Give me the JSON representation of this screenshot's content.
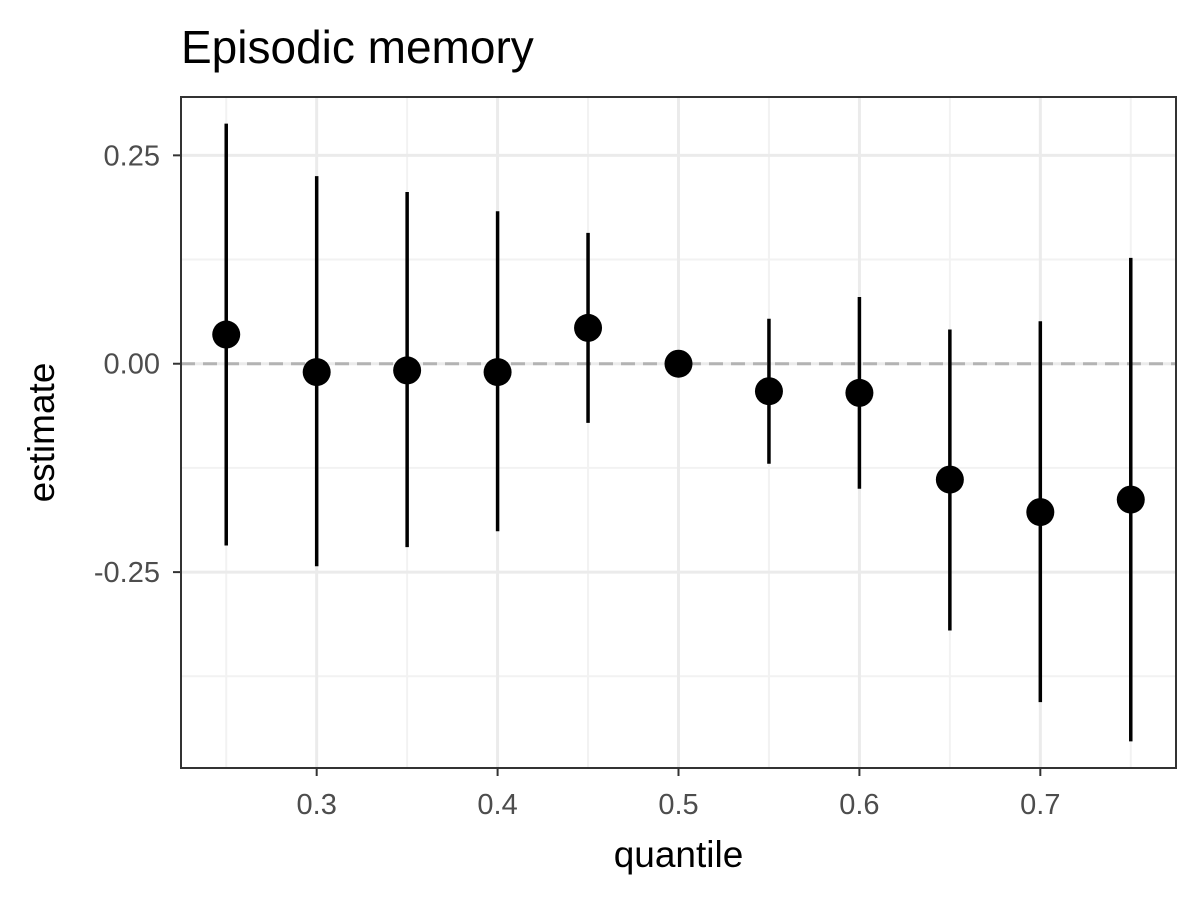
{
  "chart_data": {
    "type": "scatter",
    "title": "Episodic memory",
    "xlabel": "quantile",
    "ylabel": "estimate",
    "xlim": [
      0.225,
      0.775
    ],
    "ylim": [
      -0.485,
      0.32
    ],
    "x_ticks": [
      0.3,
      0.4,
      0.5,
      0.6,
      0.7
    ],
    "x_tick_labels": [
      "0.3",
      "0.4",
      "0.5",
      "0.6",
      "0.7"
    ],
    "x_minor_gridlines": [
      0.25,
      0.35,
      0.45,
      0.55,
      0.65,
      0.75
    ],
    "y_ticks": [
      0.25,
      0.0,
      -0.25
    ],
    "y_tick_labels": [
      "0.25",
      "0.00",
      "-0.25"
    ],
    "y_minor_gridlines": [
      0.125,
      -0.125,
      -0.375
    ],
    "grid": true,
    "reference_line": {
      "y": 0,
      "style": "dashed",
      "color": "#b3b3b3"
    },
    "point_color": "#000000",
    "panel_border_color": "#333333",
    "grid_major_color": "#ebebeb",
    "grid_minor_color": "#f2f2f2",
    "points": [
      {
        "x": 0.25,
        "y": 0.035,
        "ymin": -0.218,
        "ymax": 0.288
      },
      {
        "x": 0.3,
        "y": -0.01,
        "ymin": -0.243,
        "ymax": 0.225
      },
      {
        "x": 0.35,
        "y": -0.008,
        "ymin": -0.22,
        "ymax": 0.206
      },
      {
        "x": 0.4,
        "y": -0.01,
        "ymin": -0.201,
        "ymax": 0.183
      },
      {
        "x": 0.45,
        "y": 0.043,
        "ymin": -0.071,
        "ymax": 0.157
      },
      {
        "x": 0.5,
        "y": 0.0,
        "ymin": 0.0,
        "ymax": 0.0
      },
      {
        "x": 0.55,
        "y": -0.033,
        "ymin": -0.12,
        "ymax": 0.054
      },
      {
        "x": 0.6,
        "y": -0.035,
        "ymin": -0.15,
        "ymax": 0.08
      },
      {
        "x": 0.65,
        "y": -0.139,
        "ymin": -0.32,
        "ymax": 0.041
      },
      {
        "x": 0.7,
        "y": -0.178,
        "ymin": -0.406,
        "ymax": 0.051
      },
      {
        "x": 0.75,
        "y": -0.163,
        "ymin": -0.453,
        "ymax": 0.127
      }
    ]
  }
}
